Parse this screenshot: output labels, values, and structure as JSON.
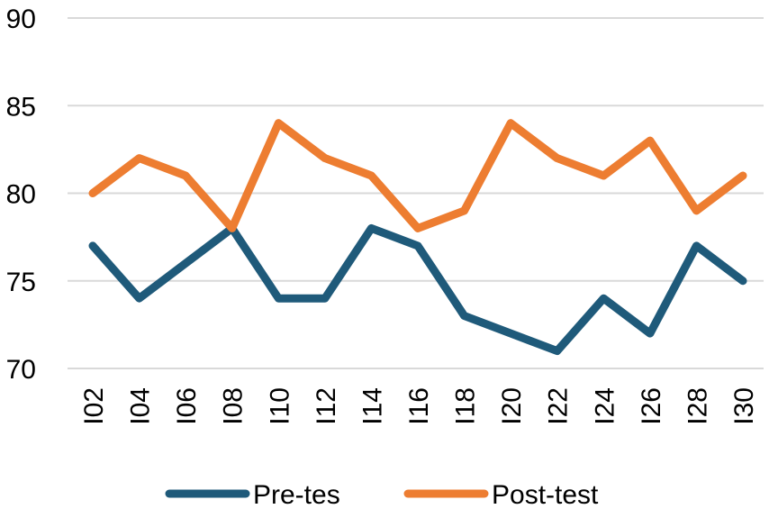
{
  "chart_data": {
    "type": "line",
    "title": "",
    "xlabel": "",
    "ylabel": "",
    "categories": [
      "I02",
      "I04",
      "I06",
      "I08",
      "I10",
      "I12",
      "I14",
      "I16",
      "I18",
      "I20",
      "I22",
      "I24",
      "I26",
      "I28",
      "I30"
    ],
    "ylim": [
      70,
      90
    ],
    "yticks": [
      70,
      75,
      80,
      85,
      90
    ],
    "grid": "horizontal",
    "legend_position": "bottom",
    "series": [
      {
        "name": "Pre-tes",
        "color": "#1f5a7a",
        "values": [
          77,
          74,
          76,
          78,
          74,
          74,
          78,
          77,
          73,
          72,
          71,
          74,
          72,
          77,
          75
        ]
      },
      {
        "name": "Post-test",
        "color": "#ed7d31",
        "values": [
          80,
          82,
          81,
          78,
          84,
          82,
          81,
          78,
          79,
          84,
          82,
          81,
          83,
          79,
          81
        ]
      }
    ]
  }
}
